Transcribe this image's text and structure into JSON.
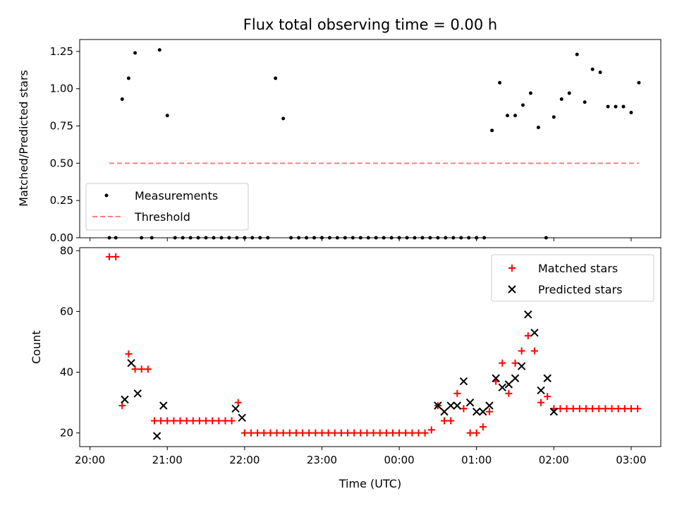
{
  "title": "Flux total observing time = 0.00 h",
  "xlabel": "Time (UTC)",
  "colors": {
    "matched": "#ff0000",
    "predicted": "#000000",
    "measurement": "#000000",
    "threshold": "#ff8080"
  },
  "chart_data": [
    {
      "type": "scatter",
      "ylabel": "Matched/Predicted stars",
      "ylim": [
        0,
        1.33
      ],
      "yticks": [
        "0.00",
        "0.25",
        "0.50",
        "0.75",
        "1.00",
        "1.25"
      ],
      "x_unit": "minutes since 20:00 UTC",
      "xlim": [
        -8,
        443
      ],
      "legend": {
        "position": "lower-left",
        "entries": [
          "Measurements",
          "Threshold"
        ]
      },
      "series": [
        {
          "name": "Measurements",
          "marker": "dot",
          "x": [
            15,
            20,
            25,
            30,
            35,
            40,
            48,
            54,
            60,
            66,
            72,
            78,
            84,
            90,
            96,
            102,
            108,
            114,
            120,
            126,
            132,
            138,
            144,
            150,
            156,
            162,
            168,
            174,
            180,
            186,
            192,
            198,
            204,
            210,
            216,
            222,
            228,
            234,
            240,
            246,
            252,
            258,
            264,
            270,
            276,
            282,
            288,
            294,
            300,
            306,
            312,
            318,
            324,
            330,
            336,
            342,
            348,
            354,
            360,
            366,
            372,
            378,
            384,
            390,
            396,
            402,
            408,
            414,
            420,
            426
          ],
          "y": [
            0,
            0,
            0.93,
            1.07,
            1.24,
            0,
            0,
            1.26,
            0.82,
            0,
            0,
            0,
            0,
            0,
            0,
            0,
            0,
            0,
            0,
            0,
            0,
            0,
            1.07,
            0.8,
            0,
            0,
            0,
            0,
            0,
            0,
            0,
            0,
            0,
            0,
            0,
            0,
            0,
            0,
            0,
            0,
            0,
            0,
            0,
            0,
            0,
            0,
            0,
            0,
            0,
            0,
            0.72,
            1.04,
            0.82,
            0.82,
            0.89,
            0.97,
            0.74,
            0,
            0.81,
            0.93,
            0.97,
            1.23,
            0.91,
            1.13,
            1.11,
            0.88,
            0.88,
            0.88,
            0.84,
            1.04
          ]
        },
        {
          "name": "Threshold",
          "type": "line",
          "x": [
            15,
            426
          ],
          "y": [
            0.5,
            0.5
          ]
        }
      ]
    },
    {
      "type": "scatter",
      "ylabel": "Count",
      "ylim": [
        15.5,
        81
      ],
      "yticks": [
        "20",
        "40",
        "60",
        "80"
      ],
      "xlim": [
        -8,
        443
      ],
      "xticks": [
        "20:00",
        "21:00",
        "22:00",
        "23:00",
        "00:00",
        "01:00",
        "02:00",
        "03:00"
      ],
      "legend": {
        "position": "top-right",
        "entries": [
          "Matched stars",
          "Predicted stars"
        ]
      },
      "series": [
        {
          "name": "Matched stars",
          "marker": "plus",
          "x": [
            15,
            20,
            25,
            30,
            35,
            40,
            45,
            50,
            55,
            60,
            65,
            70,
            75,
            80,
            85,
            90,
            95,
            100,
            105,
            110,
            115,
            120,
            125,
            130,
            135,
            140,
            145,
            150,
            155,
            160,
            165,
            170,
            175,
            180,
            185,
            190,
            195,
            200,
            205,
            210,
            215,
            220,
            225,
            230,
            235,
            240,
            245,
            250,
            255,
            260,
            265,
            270,
            275,
            280,
            285,
            290,
            295,
            300,
            305,
            310,
            315,
            320,
            325,
            330,
            335,
            340,
            345,
            350,
            355,
            360,
            365,
            370,
            375,
            380,
            385,
            390,
            395,
            400,
            405,
            410,
            415,
            420,
            425
          ],
          "y": [
            78,
            78,
            29,
            46,
            41,
            41,
            41,
            24,
            24,
            24,
            24,
            24,
            24,
            24,
            24,
            24,
            24,
            24,
            24,
            24,
            30,
            20,
            20,
            20,
            20,
            20,
            20,
            20,
            20,
            20,
            20,
            20,
            20,
            20,
            20,
            20,
            20,
            20,
            20,
            20,
            20,
            20,
            20,
            20,
            20,
            20,
            20,
            20,
            20,
            20,
            21,
            29,
            24,
            24,
            33,
            28,
            20,
            20,
            22,
            27,
            37,
            43,
            33,
            43,
            47,
            52,
            47,
            30,
            32,
            28,
            28,
            28,
            28,
            28,
            28,
            28,
            28,
            28,
            28,
            28,
            28,
            28,
            28
          ]
        },
        {
          "name": "Predicted stars",
          "marker": "x",
          "x": [
            27,
            32,
            37,
            52,
            57,
            113,
            118,
            270,
            275,
            280,
            285,
            290,
            295,
            300,
            305,
            310,
            315,
            320,
            325,
            330,
            335,
            340,
            345,
            350,
            355,
            360
          ],
          "y": [
            31,
            43,
            33,
            19,
            29,
            28,
            25,
            29,
            27,
            29,
            29,
            37,
            30,
            27,
            27,
            29,
            38,
            35,
            36,
            38,
            42,
            59,
            53,
            34,
            38,
            27
          ]
        }
      ]
    }
  ]
}
